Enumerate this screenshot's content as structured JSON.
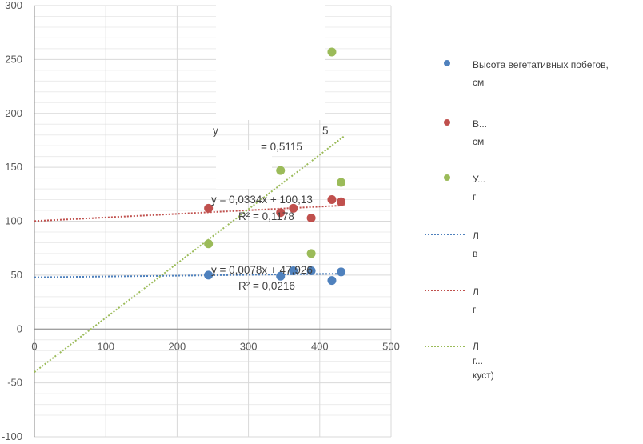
{
  "chart_data": {
    "type": "scatter",
    "xlim": [
      0,
      500
    ],
    "ylim": [
      -100,
      300
    ],
    "x_ticks": [
      0,
      100,
      200,
      300,
      400,
      500
    ],
    "y_ticks": [
      -100,
      -50,
      0,
      50,
      100,
      150,
      200,
      250,
      300
    ],
    "grid": true,
    "legend_position": "right",
    "series": [
      {
        "name": "Высота вегетативных побегов, см",
        "color": "#4f81bd",
        "points": [
          [
            244,
            50
          ],
          [
            345,
            49
          ],
          [
            363,
            54
          ],
          [
            388,
            54
          ],
          [
            417,
            45
          ],
          [
            430,
            53
          ]
        ],
        "trend": {
          "slope": 0.0078,
          "intercept": 47.926,
          "x_range": [
            0,
            435
          ],
          "equation": "y = 0,0078x + 47,926",
          "r2": "R² = 0,0216"
        }
      },
      {
        "name": "В... см",
        "color": "#c0504d",
        "points": [
          [
            244,
            112
          ],
          [
            345,
            108
          ],
          [
            363,
            112
          ],
          [
            388,
            103
          ],
          [
            417,
            120
          ],
          [
            430,
            118
          ]
        ],
        "trend": {
          "slope": 0.0334,
          "intercept": 100.13,
          "x_range": [
            0,
            435
          ],
          "equation": "y = 0,0334x + 100,13",
          "r2": "R² = 0,1178"
        }
      },
      {
        "name": "У... г",
        "color": "#9bbb59",
        "points": [
          [
            244,
            79
          ],
          [
            345,
            147
          ],
          [
            388,
            70
          ],
          [
            417,
            257
          ],
          [
            430,
            136
          ]
        ],
        "trend": {
          "slope": 0.504,
          "intercept": -40,
          "x_range": [
            0,
            435
          ],
          "equation": "y",
          "r2": "",
          "fragment_top": "У",
          "fragment_mid": "5",
          "fragment_bottom": "= 0,5115"
        }
      }
    ]
  },
  "legend": [
    {
      "kind": "marker",
      "color": "#4f81bd",
      "text": "Высота вегетативных побегов,\nсм"
    },
    {
      "kind": "marker",
      "color": "#c0504d",
      "text": "В...\nсм"
    },
    {
      "kind": "marker",
      "color": "#9bbb59",
      "text": "У...\nг"
    },
    {
      "kind": "line",
      "color": "#4f81bd",
      "text": "Л\nв"
    },
    {
      "kind": "line",
      "color": "#c0504d",
      "text": "Л\nг"
    },
    {
      "kind": "line",
      "color": "#9bbb59",
      "text": "Л\nг...\nкуст)"
    }
  ]
}
